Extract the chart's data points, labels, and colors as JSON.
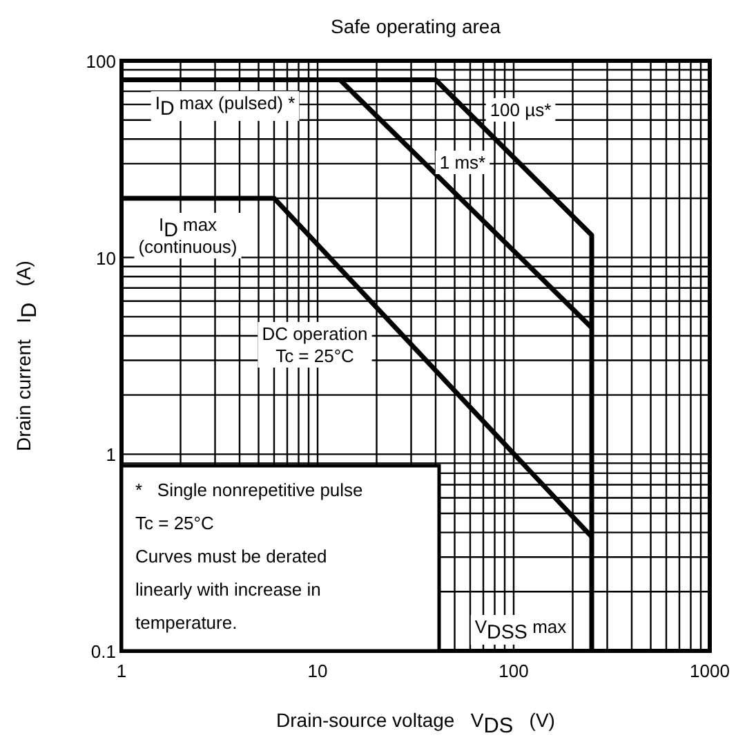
{
  "chart_data": {
    "type": "line",
    "title": "Safe operating area",
    "xlabel": "Drain-source voltage   V$_{DS}$   (V)",
    "ylabel": "Drain current   I$_{D}$   (A)",
    "log": "xy",
    "grid": true,
    "xlim": [
      1,
      1000
    ],
    "ylim": [
      0.1,
      100
    ],
    "xticks": [
      1,
      10,
      100,
      1000
    ],
    "yticks": [
      0.1,
      1,
      10,
      100
    ],
    "line_style": "solid",
    "marker": "none",
    "series": [
      {
        "color": "#000000",
        "x": [
          1,
          40,
          250,
          250
        ],
        "values": [
          80,
          80,
          13,
          0.1
        ]
      },
      {
        "color": "#000000",
        "x": [
          13,
          250
        ],
        "values": [
          80,
          4.4
        ]
      },
      {
        "color": "#000000",
        "x": [
          1,
          6,
          250
        ],
        "values": [
          20,
          20,
          0.38
        ]
      }
    ],
    "annotations": [
      "I$_{D}$ max (pulsed) *",
      "100 µs*",
      "1 ms*",
      "I$_{D}$ max\n(continuous)",
      "DC operation\nTc = 25°C",
      "V$_{DSS}$ max",
      "*   Single nonrepetitive pulse",
      "     Tc = 25°C",
      "Curves must be derated linearly with increase in temperature."
    ]
  }
}
